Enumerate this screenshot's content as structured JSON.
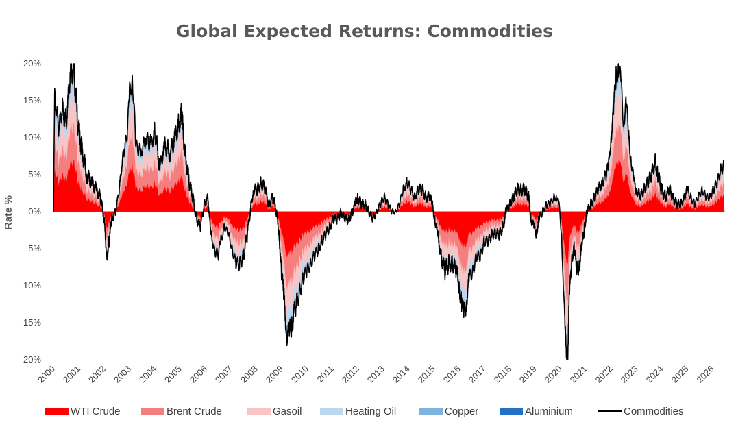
{
  "chart_data": {
    "type": "area",
    "title": "Global Expected Returns: Commodities",
    "xlabel": "",
    "ylabel": "Rate %",
    "ylim": [
      -20,
      20
    ],
    "y_ticks": [
      20,
      15,
      10,
      5,
      0,
      -5,
      -10,
      -15,
      -20
    ],
    "y_tick_labels": [
      "20%",
      "15%",
      "10%",
      "5%",
      "0%",
      "-5%",
      "-10%",
      "-15%",
      "-20%"
    ],
    "xlim": [
      2000,
      2026.5
    ],
    "x_tick_labels": [
      "2000",
      "2001",
      "2002",
      "2003",
      "2004",
      "2005",
      "2006",
      "2007",
      "2008",
      "2009",
      "2010",
      "2011",
      "2012",
      "2013",
      "2014",
      "2015",
      "2016",
      "2017",
      "2018",
      "2019",
      "2020",
      "2021",
      "2022",
      "2023",
      "2024",
      "2025",
      "2026"
    ],
    "legend_position": "bottom",
    "stacked": true,
    "line_series": "Commodities",
    "total_points": [
      [
        2000.0,
        0
      ],
      [
        2000.05,
        16
      ],
      [
        2000.2,
        11
      ],
      [
        2000.35,
        14
      ],
      [
        2000.5,
        12
      ],
      [
        2000.65,
        18
      ],
      [
        2000.8,
        20
      ],
      [
        2000.95,
        12
      ],
      [
        2001.1,
        9
      ],
      [
        2001.3,
        5
      ],
      [
        2001.5,
        4
      ],
      [
        2001.7,
        3
      ],
      [
        2001.85,
        2
      ],
      [
        2002.0,
        -1
      ],
      [
        2002.1,
        -6
      ],
      [
        2002.2,
        -4
      ],
      [
        2002.3,
        -1
      ],
      [
        2002.45,
        0
      ],
      [
        2002.6,
        3
      ],
      [
        2002.75,
        8
      ],
      [
        2002.9,
        10
      ],
      [
        2003.0,
        16
      ],
      [
        2003.12,
        18
      ],
      [
        2003.25,
        9
      ],
      [
        2003.45,
        8
      ],
      [
        2003.65,
        10
      ],
      [
        2003.85,
        9
      ],
      [
        2004.0,
        11
      ],
      [
        2004.2,
        6
      ],
      [
        2004.4,
        9
      ],
      [
        2004.6,
        8
      ],
      [
        2004.8,
        10
      ],
      [
        2004.95,
        12
      ],
      [
        2005.05,
        13
      ],
      [
        2005.2,
        8
      ],
      [
        2005.35,
        4
      ],
      [
        2005.5,
        2
      ],
      [
        2005.65,
        -1
      ],
      [
        2005.8,
        -2
      ],
      [
        2005.95,
        1
      ],
      [
        2006.1,
        2
      ],
      [
        2006.2,
        -3
      ],
      [
        2006.35,
        -5
      ],
      [
        2006.5,
        -6
      ],
      [
        2006.6,
        -4
      ],
      [
        2006.75,
        -2
      ],
      [
        2006.9,
        -3
      ],
      [
        2007.05,
        -5
      ],
      [
        2007.2,
        -7
      ],
      [
        2007.35,
        -7
      ],
      [
        2007.5,
        -6
      ],
      [
        2007.65,
        -3
      ],
      [
        2007.8,
        1
      ],
      [
        2007.9,
        3
      ],
      [
        2008.05,
        3
      ],
      [
        2008.2,
        4
      ],
      [
        2008.35,
        3
      ],
      [
        2008.5,
        1
      ],
      [
        2008.65,
        2
      ],
      [
        2008.8,
        0
      ],
      [
        2008.9,
        -3
      ],
      [
        2009.0,
        -8
      ],
      [
        2009.1,
        -12
      ],
      [
        2009.2,
        -16
      ],
      [
        2009.3,
        -17
      ],
      [
        2009.4,
        -15
      ],
      [
        2009.55,
        -13
      ],
      [
        2009.7,
        -11
      ],
      [
        2009.85,
        -9
      ],
      [
        2010.0,
        -8
      ],
      [
        2010.15,
        -7
      ],
      [
        2010.3,
        -6
      ],
      [
        2010.45,
        -5
      ],
      [
        2010.6,
        -4
      ],
      [
        2010.75,
        -3
      ],
      [
        2010.9,
        -2
      ],
      [
        2011.05,
        -1
      ],
      [
        2011.2,
        -1
      ],
      [
        2011.35,
        0
      ],
      [
        2011.5,
        -1
      ],
      [
        2011.65,
        -1
      ],
      [
        2011.8,
        0
      ],
      [
        2011.9,
        1
      ],
      [
        2012.0,
        2
      ],
      [
        2012.15,
        1
      ],
      [
        2012.3,
        1
      ],
      [
        2012.45,
        0
      ],
      [
        2012.6,
        -1
      ],
      [
        2012.75,
        0
      ],
      [
        2012.9,
        1
      ],
      [
        2013.05,
        2
      ],
      [
        2013.2,
        1
      ],
      [
        2013.35,
        0
      ],
      [
        2013.5,
        0
      ],
      [
        2013.65,
        1
      ],
      [
        2013.8,
        3
      ],
      [
        2013.95,
        4
      ],
      [
        2014.1,
        3
      ],
      [
        2014.25,
        2
      ],
      [
        2014.4,
        3
      ],
      [
        2014.55,
        3
      ],
      [
        2014.7,
        2
      ],
      [
        2014.85,
        2
      ],
      [
        2014.95,
        1
      ],
      [
        2015.05,
        -1
      ],
      [
        2015.15,
        -3
      ],
      [
        2015.3,
        -6
      ],
      [
        2015.45,
        -8
      ],
      [
        2015.6,
        -7
      ],
      [
        2015.75,
        -7
      ],
      [
        2015.9,
        -8
      ],
      [
        2016.0,
        -10
      ],
      [
        2016.1,
        -12
      ],
      [
        2016.2,
        -14
      ],
      [
        2016.3,
        -12
      ],
      [
        2016.4,
        -9
      ],
      [
        2016.55,
        -8
      ],
      [
        2016.7,
        -6
      ],
      [
        2016.85,
        -6
      ],
      [
        2017.0,
        -4
      ],
      [
        2017.15,
        -4
      ],
      [
        2017.3,
        -3
      ],
      [
        2017.45,
        -3
      ],
      [
        2017.6,
        -3
      ],
      [
        2017.75,
        -2
      ],
      [
        2017.85,
        0
      ],
      [
        2018.0,
        1
      ],
      [
        2018.15,
        2
      ],
      [
        2018.3,
        3
      ],
      [
        2018.45,
        3
      ],
      [
        2018.6,
        3
      ],
      [
        2018.75,
        2
      ],
      [
        2018.85,
        -1
      ],
      [
        2018.95,
        -2
      ],
      [
        2019.05,
        -3
      ],
      [
        2019.15,
        -1
      ],
      [
        2019.3,
        0
      ],
      [
        2019.45,
        1
      ],
      [
        2019.6,
        1
      ],
      [
        2019.75,
        2
      ],
      [
        2019.85,
        2
      ],
      [
        2019.95,
        1
      ],
      [
        2020.05,
        -3
      ],
      [
        2020.12,
        -10
      ],
      [
        2020.2,
        -17
      ],
      [
        2020.28,
        -20
      ],
      [
        2020.36,
        -12
      ],
      [
        2020.45,
        -6
      ],
      [
        2020.55,
        -5
      ],
      [
        2020.65,
        -8
      ],
      [
        2020.75,
        -7
      ],
      [
        2020.85,
        -5
      ],
      [
        2020.95,
        -2
      ],
      [
        2021.05,
        0
      ],
      [
        2021.2,
        1
      ],
      [
        2021.35,
        2
      ],
      [
        2021.5,
        3
      ],
      [
        2021.65,
        4
      ],
      [
        2021.8,
        5
      ],
      [
        2021.9,
        6
      ],
      [
        2022.0,
        10
      ],
      [
        2022.1,
        14
      ],
      [
        2022.2,
        18
      ],
      [
        2022.3,
        20
      ],
      [
        2022.4,
        17
      ],
      [
        2022.5,
        12
      ],
      [
        2022.6,
        15
      ],
      [
        2022.7,
        10
      ],
      [
        2022.8,
        7
      ],
      [
        2022.9,
        4
      ],
      [
        2023.0,
        3
      ],
      [
        2023.15,
        2
      ],
      [
        2023.3,
        3
      ],
      [
        2023.45,
        4
      ],
      [
        2023.6,
        5
      ],
      [
        2023.75,
        7
      ],
      [
        2023.85,
        5
      ],
      [
        2024.0,
        3
      ],
      [
        2024.15,
        2
      ],
      [
        2024.3,
        3
      ],
      [
        2024.45,
        2
      ],
      [
        2024.6,
        1
      ],
      [
        2024.75,
        1
      ],
      [
        2024.9,
        2
      ],
      [
        2025.0,
        3
      ],
      [
        2025.15,
        2
      ],
      [
        2025.3,
        1
      ],
      [
        2025.45,
        2
      ],
      [
        2025.6,
        3
      ],
      [
        2025.75,
        2
      ],
      [
        2025.9,
        2
      ],
      [
        2026.05,
        3
      ],
      [
        2026.2,
        4
      ],
      [
        2026.35,
        6
      ],
      [
        2026.45,
        6
      ]
    ],
    "series": [
      {
        "name": "WTI Crude",
        "share": 0.35
      },
      {
        "name": "Brent Crude",
        "share": 0.25
      },
      {
        "name": "Gasoil",
        "share": 0.22
      },
      {
        "name": "Heating Oil",
        "share": 0.12
      },
      {
        "name": "Copper",
        "share": 0.04
      },
      {
        "name": "Aluminium",
        "share": 0.02
      }
    ],
    "colors": {
      "WTI Crude": "#ff0000",
      "Brent Crude": "#f57f7f",
      "Gasoil": "#f9c4c4",
      "Heating Oil": "#bdd7ee",
      "Copper": "#7fb3de",
      "Aluminium": "#1f72c4",
      "Commodities": "#000000",
      "axis_text": "#404040",
      "title": "#595959"
    }
  }
}
